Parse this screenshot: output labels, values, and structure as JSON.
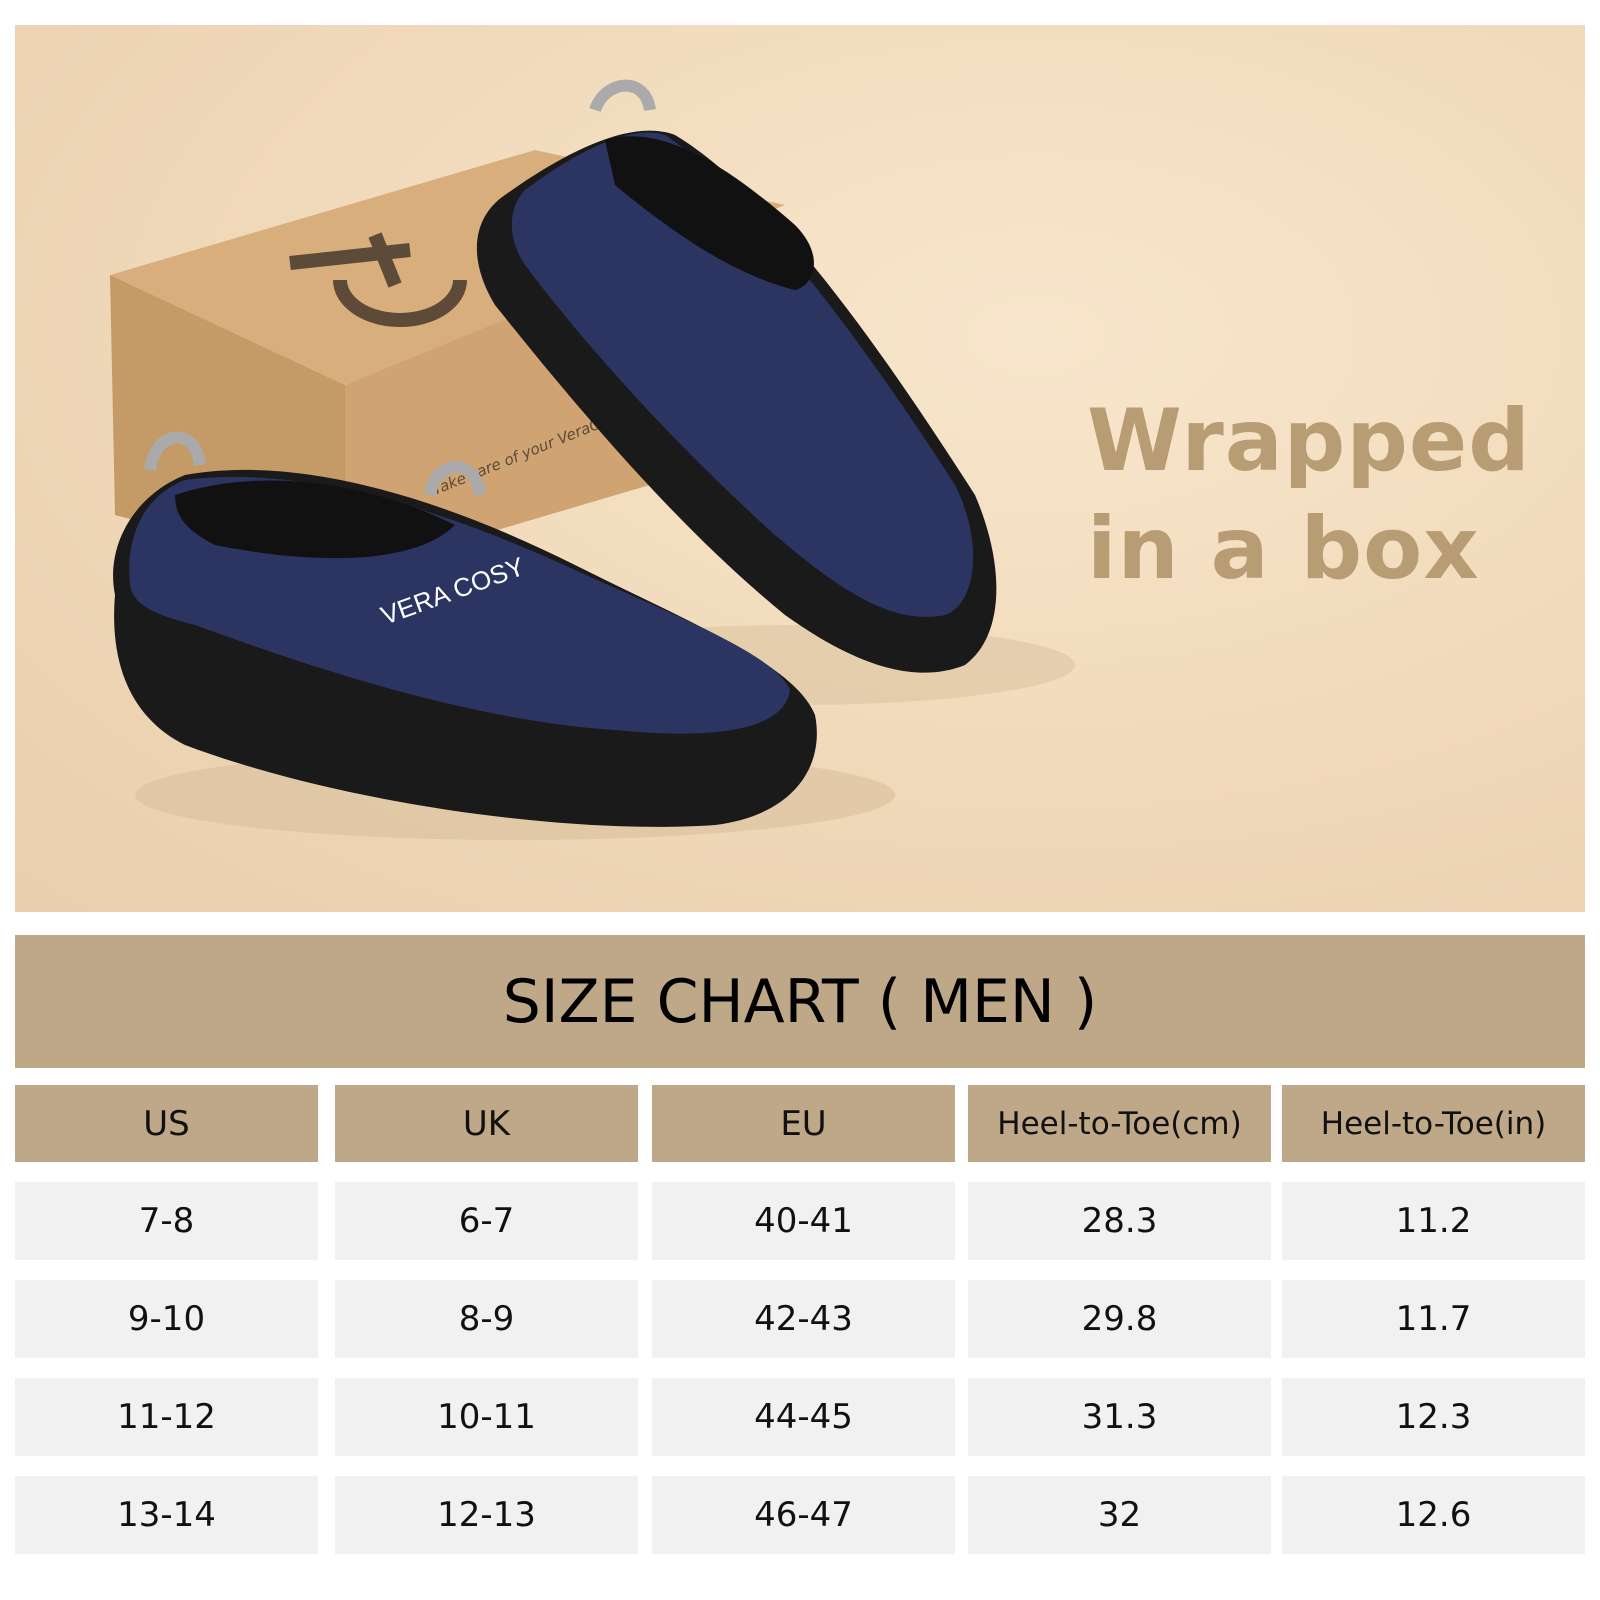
{
  "photo": {
    "tagline_line1": "Wrapped",
    "tagline_line2": "in a box",
    "box_logo_text": "VERA",
    "box_side_text": "Take care of your VeraCosy, care of your feet",
    "shoe_logo_text": "VERA COSY",
    "colors": {
      "background": "#f0d9b9",
      "shoe": "#2c3562",
      "sole": "#1a1a1a",
      "box": "#c9a06e",
      "tagline": "#b89c74"
    }
  },
  "size_chart": {
    "title": "SIZE CHART ( MEN )",
    "header_color": "#bfa888",
    "columns": [
      "US",
      "UK",
      "EU",
      "Heel-to-Toe(cm)",
      "Heel-to-Toe(in)"
    ],
    "rows": [
      [
        "7-8",
        "6-7",
        "40-41",
        "28.3",
        "11.2"
      ],
      [
        "9-10",
        "8-9",
        "42-43",
        "29.8",
        "11.7"
      ],
      [
        "11-12",
        "10-11",
        "44-45",
        "31.3",
        "12.3"
      ],
      [
        "13-14",
        "12-13",
        "46-47",
        "32",
        "12.6"
      ]
    ]
  }
}
